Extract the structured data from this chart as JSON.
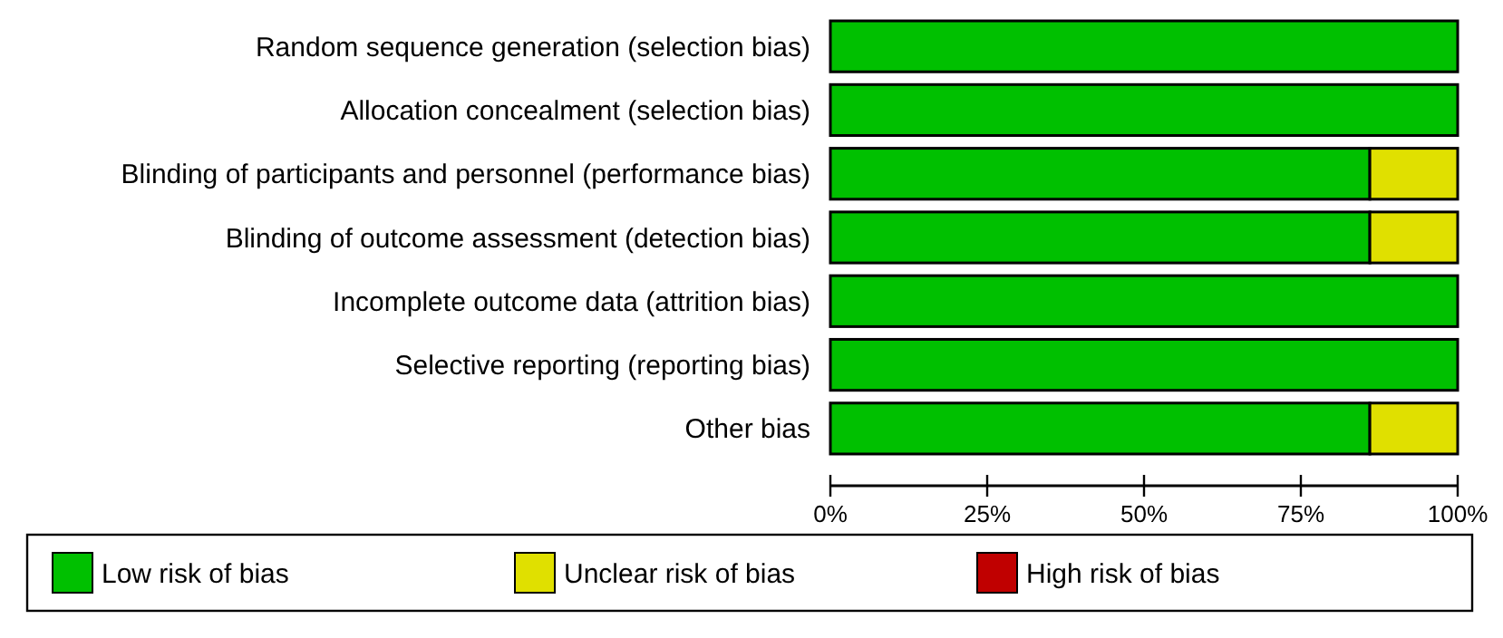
{
  "chart_data": {
    "type": "bar",
    "orientation": "horizontal",
    "stacked": true,
    "categories": [
      "Random sequence generation (selection bias)",
      "Allocation concealment (selection bias)",
      "Blinding of participants and personnel (performance bias)",
      "Blinding of outcome assessment (detection bias)",
      "Incomplete outcome data (attrition bias)",
      "Selective reporting (reporting bias)",
      "Other bias"
    ],
    "series": [
      {
        "name": "Low risk of bias",
        "color": "#00c000",
        "values": [
          100,
          100,
          86,
          86,
          100,
          100,
          86
        ]
      },
      {
        "name": "Unclear risk of bias",
        "color": "#e0e000",
        "values": [
          0,
          0,
          14,
          14,
          0,
          0,
          14
        ]
      },
      {
        "name": "High risk of bias",
        "color": "#c00000",
        "values": [
          0,
          0,
          0,
          0,
          0,
          0,
          0
        ]
      }
    ],
    "xlim": [
      0,
      100
    ],
    "xticks": [
      {
        "value": 0,
        "label": "0%"
      },
      {
        "value": 25,
        "label": "25%"
      },
      {
        "value": 50,
        "label": "50%"
      },
      {
        "value": 75,
        "label": "75%"
      },
      {
        "value": 100,
        "label": "100%"
      }
    ],
    "grid": false,
    "legend": "bottom"
  }
}
